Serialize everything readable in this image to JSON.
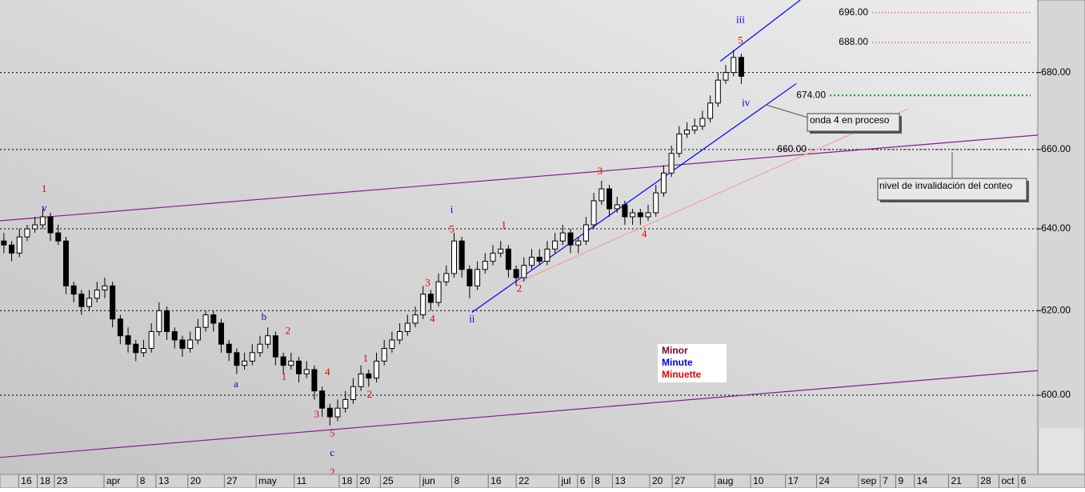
{
  "chart_data": {
    "type": "candlestick",
    "log_scale": true,
    "grid": true,
    "up_color": "#ffffff",
    "down_color": "#000000",
    "ylim": [
      582.4,
      699.4
    ],
    "yticks": [
      {
        "value": 600,
        "label": "600.00"
      },
      {
        "value": 620,
        "label": "620.00"
      },
      {
        "value": 640,
        "label": "640.00"
      },
      {
        "value": 660,
        "label": "660.00"
      },
      {
        "value": 680,
        "label": "680.00"
      }
    ],
    "xlim": [
      -0.5,
      133.2
    ],
    "xticks": [
      {
        "value": 1.9,
        "label": "16"
      },
      {
        "value": 4.3,
        "label": "18"
      },
      {
        "value": 6.5,
        "label": "23"
      },
      {
        "value": 12.9,
        "label": "apr"
      },
      {
        "value": 17.2,
        "label": "8"
      },
      {
        "value": 19.6,
        "label": "13"
      },
      {
        "value": 23.7,
        "label": "20"
      },
      {
        "value": 28.4,
        "label": "27"
      },
      {
        "value": 32.5,
        "label": "may"
      },
      {
        "value": 37.4,
        "label": "11"
      },
      {
        "value": 43.2,
        "label": "18"
      },
      {
        "value": 45.5,
        "label": "20"
      },
      {
        "value": 48.5,
        "label": "25"
      },
      {
        "value": 53.6,
        "label": "jun"
      },
      {
        "value": 57.7,
        "label": "8"
      },
      {
        "value": 62.4,
        "label": "16"
      },
      {
        "value": 66,
        "label": "22"
      },
      {
        "value": 71.5,
        "label": "jul"
      },
      {
        "value": 73.9,
        "label": "6"
      },
      {
        "value": 75.8,
        "label": "8"
      },
      {
        "value": 78.4,
        "label": "13"
      },
      {
        "value": 83.2,
        "label": "20"
      },
      {
        "value": 86.1,
        "label": "27"
      },
      {
        "value": 91.6,
        "label": "aug"
      },
      {
        "value": 96.2,
        "label": "10"
      },
      {
        "value": 100.7,
        "label": "17"
      },
      {
        "value": 104.7,
        "label": "24"
      },
      {
        "value": 110.1,
        "label": "sep"
      },
      {
        "value": 112.9,
        "label": "7"
      },
      {
        "value": 114.9,
        "label": "9"
      },
      {
        "value": 117.3,
        "label": "14"
      },
      {
        "value": 121.7,
        "label": "21"
      },
      {
        "value": 125.5,
        "label": "28"
      },
      {
        "value": 128.2,
        "label": "oct"
      },
      {
        "value": 130.7,
        "label": "6"
      }
    ],
    "ohlc": [
      [
        637,
        639,
        634,
        636
      ],
      [
        636,
        637,
        632,
        634
      ],
      [
        634,
        640,
        633,
        638
      ],
      [
        638,
        641,
        637,
        640
      ],
      [
        640,
        643,
        639,
        641
      ],
      [
        641,
        645,
        640,
        643
      ],
      [
        643,
        644,
        637,
        639
      ],
      [
        639,
        641,
        636,
        637
      ],
      [
        637,
        638,
        624,
        626
      ],
      [
        626,
        627,
        622,
        624
      ],
      [
        624,
        625,
        619,
        621
      ],
      [
        621,
        625,
        620,
        623
      ],
      [
        623,
        627,
        622,
        625
      ],
      [
        625,
        628,
        623,
        626
      ],
      [
        626,
        627,
        616,
        618
      ],
      [
        618,
        619,
        612,
        614
      ],
      [
        614,
        616,
        610,
        612
      ],
      [
        612,
        613,
        608,
        610
      ],
      [
        610,
        613,
        609,
        611
      ],
      [
        611,
        617,
        610,
        615
      ],
      [
        615,
        622,
        614,
        620
      ],
      [
        620,
        621,
        613,
        615
      ],
      [
        615,
        616,
        611,
        613
      ],
      [
        613,
        614,
        609,
        611
      ],
      [
        611,
        615,
        610,
        613
      ],
      [
        613,
        618,
        612,
        616
      ],
      [
        616,
        620,
        615,
        619
      ],
      [
        619,
        620,
        615,
        617
      ],
      [
        617,
        618,
        610,
        612
      ],
      [
        612,
        613,
        608,
        610
      ],
      [
        610,
        611,
        605,
        607
      ],
      [
        607,
        610,
        606,
        608
      ],
      [
        608,
        612,
        607,
        610
      ],
      [
        610,
        614,
        609,
        612
      ],
      [
        612,
        616,
        611,
        614
      ],
      [
        614,
        615,
        607,
        609
      ],
      [
        609,
        610,
        605,
        607
      ],
      [
        607,
        610,
        606,
        608
      ],
      [
        608,
        609,
        603,
        605
      ],
      [
        605,
        608,
        604,
        606
      ],
      [
        606,
        607,
        599,
        601
      ],
      [
        601,
        602,
        595,
        597
      ],
      [
        597,
        598,
        593,
        595
      ],
      [
        595,
        599,
        594,
        597
      ],
      [
        597,
        601,
        596,
        599
      ],
      [
        599,
        604,
        598,
        602
      ],
      [
        602,
        607,
        601,
        605
      ],
      [
        605,
        606,
        602,
        604
      ],
      [
        604,
        610,
        603,
        608
      ],
      [
        608,
        613,
        607,
        611
      ],
      [
        611,
        615,
        610,
        613
      ],
      [
        613,
        617,
        612,
        615
      ],
      [
        615,
        619,
        614,
        617
      ],
      [
        617,
        621,
        616,
        619
      ],
      [
        619,
        626,
        618,
        624
      ],
      [
        624,
        625,
        620,
        622
      ],
      [
        622,
        629,
        621,
        627
      ],
      [
        627,
        631,
        626,
        629
      ],
      [
        629,
        639,
        628,
        637
      ],
      [
        637,
        638,
        628,
        630
      ],
      [
        630,
        631,
        623,
        626
      ],
      [
        626,
        632,
        625,
        630
      ],
      [
        630,
        634,
        629,
        632
      ],
      [
        632,
        636,
        631,
        634
      ],
      [
        634,
        637,
        633,
        635
      ],
      [
        635,
        636,
        628,
        630
      ],
      [
        630,
        631,
        626,
        628
      ],
      [
        628,
        633,
        627,
        631
      ],
      [
        631,
        635,
        630,
        633
      ],
      [
        633,
        635,
        631,
        632
      ],
      [
        632,
        637,
        631,
        635
      ],
      [
        635,
        639,
        634,
        637
      ],
      [
        637,
        641,
        636,
        639
      ],
      [
        639,
        640,
        634,
        636
      ],
      [
        636,
        638,
        634,
        637
      ],
      [
        637,
        643,
        636,
        641
      ],
      [
        641,
        649,
        640,
        647
      ],
      [
        647,
        652,
        646,
        650
      ],
      [
        650,
        651,
        643,
        645
      ],
      [
        645,
        648,
        644,
        646
      ],
      [
        646,
        647,
        641,
        643
      ],
      [
        643,
        645,
        641,
        644
      ],
      [
        644,
        645,
        641,
        643
      ],
      [
        643,
        646,
        642,
        644
      ],
      [
        644,
        651,
        643,
        649
      ],
      [
        649,
        656,
        648,
        654
      ],
      [
        654,
        661,
        653,
        659
      ],
      [
        659,
        666,
        658,
        664
      ],
      [
        664,
        667,
        663,
        665
      ],
      [
        665,
        668,
        664,
        666
      ],
      [
        666,
        670,
        665,
        668
      ],
      [
        668,
        674,
        667,
        672
      ],
      [
        672,
        680,
        671,
        678
      ],
      [
        678,
        682,
        677,
        680
      ],
      [
        680,
        686,
        679,
        684
      ],
      [
        684,
        685,
        677,
        679
      ]
    ],
    "trend_lines": [
      {
        "color": "#8b1a8b",
        "points": [
          [
            -0.5,
            642.0
          ],
          [
            139.3,
            664.7
          ]
        ]
      },
      {
        "color": "#8b1a8b",
        "points": [
          [
            -0.5,
            585.7
          ],
          [
            139.3,
            606.7
          ]
        ]
      },
      {
        "color": "#0000ff",
        "points": [
          [
            60.3,
            619.6
          ],
          [
            102.1,
            677.1
          ]
        ]
      },
      {
        "color": "#0000ff",
        "points": [
          [
            92.3,
            683.0
          ],
          [
            102.6,
            699.4
          ]
        ]
      },
      {
        "color": "#f4a0a0",
        "points": [
          [
            66.3,
            626.9
          ],
          [
            116.5,
            670.5
          ]
        ]
      }
    ],
    "levels": [
      {
        "value": 696,
        "label": "696.00",
        "color": "#e00000"
      },
      {
        "value": 688,
        "label": "688.00",
        "color": "#e00000"
      },
      {
        "value": 674,
        "label": "674.00",
        "color": "#00a000"
      },
      {
        "value": 660,
        "label": "660.00",
        "color": "#000000"
      }
    ],
    "wave_labels": [
      {
        "text": "1",
        "x": 5.2,
        "y": 649.8,
        "color": "#a0103c"
      },
      {
        "text": "v",
        "x": 5.2,
        "y": 645.0,
        "color": "#0000e0"
      },
      {
        "text": "a",
        "x": 29.9,
        "y": 602.4,
        "color": "#0000e0"
      },
      {
        "text": "b",
        "x": 33.5,
        "y": 618.3,
        "color": "#0000e0"
      },
      {
        "text": "c",
        "x": 42.3,
        "y": 586.6,
        "color": "#0000e0"
      },
      {
        "text": "i",
        "x": 57.7,
        "y": 644.6,
        "color": "#0000e0"
      },
      {
        "text": "ii",
        "x": 60.3,
        "y": 617.9,
        "color": "#0000e0"
      },
      {
        "text": "iii",
        "x": 94.9,
        "y": 693.9,
        "color": "#0000e0"
      },
      {
        "text": "iv",
        "x": 95.6,
        "y": 671.9,
        "color": "#0000e0"
      },
      {
        "text": "1",
        "x": 36.1,
        "y": 604.1,
        "color": "#e00000"
      },
      {
        "text": "2",
        "x": 36.6,
        "y": 615.0,
        "color": "#e00000"
      },
      {
        "text": "3",
        "x": 40.3,
        "y": 595.4,
        "color": "#e00000"
      },
      {
        "text": "4",
        "x": 41.7,
        "y": 605.2,
        "color": "#e00000"
      },
      {
        "text": "5",
        "x": 42.3,
        "y": 591.0,
        "color": "#e00000"
      },
      {
        "text": "2",
        "x": 42.3,
        "y": 582.1,
        "color": "#e00000"
      },
      {
        "text": "1",
        "x": 46.6,
        "y": 608.4,
        "color": "#e00000"
      },
      {
        "text": "2",
        "x": 47.1,
        "y": 600,
        "color": "#e00000"
      },
      {
        "text": "3",
        "x": 54.6,
        "y": 626.5,
        "color": "#e00000"
      },
      {
        "text": "4",
        "x": 55.2,
        "y": 617.9,
        "color": "#e00000"
      },
      {
        "text": "5",
        "x": 57.7,
        "y": 639.7,
        "color": "#e00000"
      },
      {
        "text": "1",
        "x": 64.4,
        "y": 640.7,
        "color": "#e00000"
      },
      {
        "text": "2",
        "x": 66.4,
        "y": 625.2,
        "color": "#e00000"
      },
      {
        "text": "3",
        "x": 76.8,
        "y": 654.3,
        "color": "#e00000"
      },
      {
        "text": "4",
        "x": 82.5,
        "y": 638.5,
        "color": "#e00000"
      },
      {
        "text": "5",
        "x": 94.9,
        "y": 688.3,
        "color": "#e00000"
      }
    ],
    "legend": [
      {
        "name": "Minor",
        "color": "#800040"
      },
      {
        "name": "Minute",
        "color": "#0000e0"
      },
      {
        "name": "Minuette",
        "color": "#e00000"
      }
    ],
    "annotations": [
      "onda 4 en proceso",
      "nivel de invalidación del conteo"
    ]
  }
}
